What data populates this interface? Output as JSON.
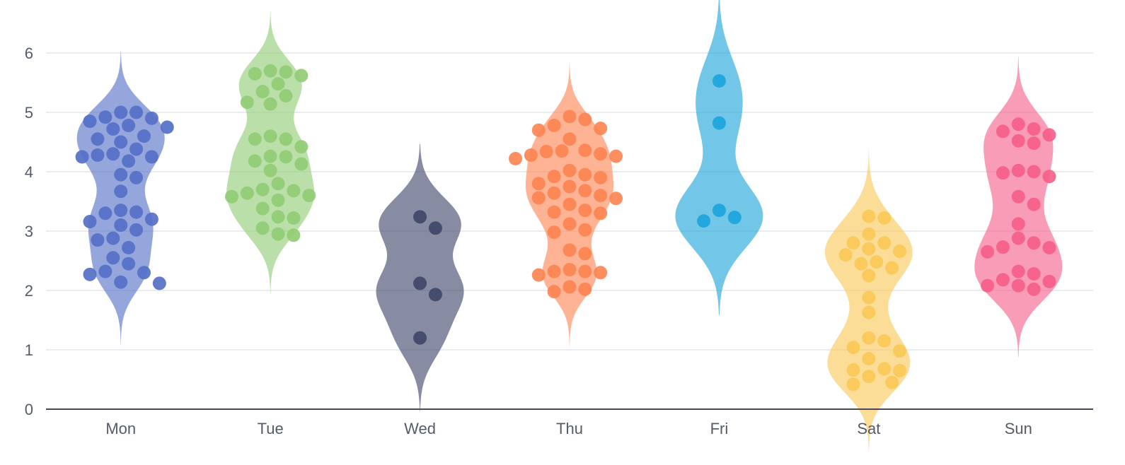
{
  "chart_data": {
    "type": "violin",
    "title": "",
    "xlabel": "",
    "ylabel": "",
    "ylim": [
      0,
      6.5
    ],
    "y_ticks": [
      "0",
      "1",
      "2",
      "3",
      "4",
      "5",
      "6"
    ],
    "grid": true,
    "categories": [
      "Mon",
      "Tue",
      "Wed",
      "Thu",
      "Fri",
      "Sat",
      "Sun"
    ],
    "series": [
      {
        "category": "Mon",
        "color": "#5470c6",
        "points": [
          5.0,
          5.0,
          4.92,
          4.9,
          4.85,
          4.78,
          4.75,
          4.72,
          4.6,
          4.55,
          4.5,
          4.38,
          4.3,
          4.28,
          4.25,
          4.25,
          4.18,
          3.95,
          3.9,
          3.67,
          3.35,
          3.32,
          3.3,
          3.2,
          3.16,
          3.1,
          3.02,
          2.88,
          2.85,
          2.72,
          2.55,
          2.45,
          2.32,
          2.3,
          2.27,
          2.14,
          2.12
        ]
      },
      {
        "category": "Tue",
        "color": "#91cc75",
        "points": [
          5.7,
          5.68,
          5.65,
          5.62,
          5.48,
          5.35,
          5.28,
          5.17,
          5.14,
          4.6,
          4.55,
          4.55,
          4.42,
          4.26,
          4.25,
          4.18,
          4.13,
          4.02,
          3.8,
          3.7,
          3.68,
          3.64,
          3.6,
          3.58,
          3.52,
          3.38,
          3.24,
          3.22,
          3.05,
          2.95,
          2.93
        ]
      },
      {
        "category": "Wed",
        "color": "#3f4669",
        "points": [
          3.24,
          3.05,
          2.12,
          1.93,
          1.2
        ]
      },
      {
        "category": "Thu",
        "color": "#fc8452",
        "points": [
          4.93,
          4.88,
          4.78,
          4.73,
          4.7,
          4.55,
          4.36,
          4.35,
          4.34,
          4.3,
          4.28,
          4.26,
          4.22,
          4.02,
          3.95,
          3.92,
          3.9,
          3.8,
          3.75,
          3.68,
          3.64,
          3.6,
          3.56,
          3.55,
          3.45,
          3.35,
          3.32,
          3.3,
          3.12,
          3.02,
          2.98,
          2.68,
          2.62,
          2.35,
          2.32,
          2.32,
          2.3,
          2.26,
          2.06,
          2.02,
          1.98
        ]
      },
      {
        "category": "Fri",
        "color": "#1ba5dc",
        "points": [
          5.53,
          4.82,
          3.35,
          3.23,
          3.17
        ]
      },
      {
        "category": "Sat",
        "color": "#fac858",
        "points": [
          3.25,
          3.22,
          2.95,
          2.8,
          2.8,
          2.7,
          2.66,
          2.6,
          2.48,
          2.45,
          2.38,
          2.25,
          1.88,
          1.63,
          1.2,
          1.15,
          1.04,
          0.98,
          0.85,
          0.68,
          0.66,
          0.65,
          0.55,
          0.45,
          0.42
        ]
      },
      {
        "category": "Sun",
        "color": "#f5608a",
        "points": [
          4.8,
          4.72,
          4.68,
          4.62,
          4.52,
          4.48,
          4.02,
          4.0,
          3.98,
          3.92,
          3.58,
          3.45,
          3.12,
          2.88,
          2.8,
          2.73,
          2.72,
          2.65,
          2.32,
          2.28,
          2.18,
          2.15,
          2.08,
          2.08,
          2.02
        ]
      }
    ]
  }
}
